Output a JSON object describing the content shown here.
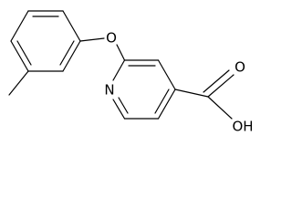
{
  "atoms": {
    "ether_oxygen": "O",
    "ring_nitrogen": "N",
    "carbonyl_oxygen": "O",
    "hydroxyl": "OH"
  }
}
